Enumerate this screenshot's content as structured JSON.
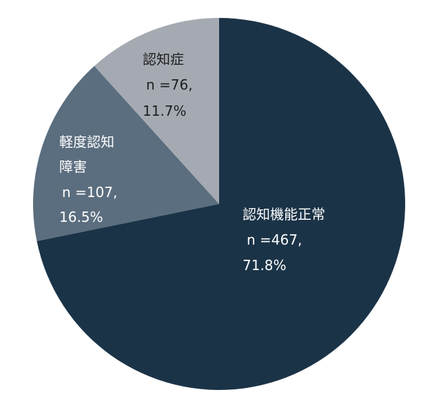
{
  "chart_data": {
    "type": "pie",
    "title": "",
    "start": "12 o'clock",
    "direction": "clockwise",
    "slices": [
      {
        "name": "認知機能正常",
        "n_text": "n =467,",
        "pct_text": "71.8%",
        "value": 71.8,
        "color": "#1b3347",
        "text_color": "#ffffff"
      },
      {
        "name": "軽度認知障害",
        "name_lines": [
          "軽度認知",
          "障害"
        ],
        "n_text": "n =107,",
        "pct_text": "16.5%",
        "value": 16.5,
        "color": "#5b6e7f",
        "text_color": "#ffffff"
      },
      {
        "name": "認知症",
        "n_text": "n =76,",
        "pct_text": "11.7%",
        "value": 11.7,
        "color": "#a5aab2",
        "text_color": "#1e1e1e"
      }
    ]
  }
}
